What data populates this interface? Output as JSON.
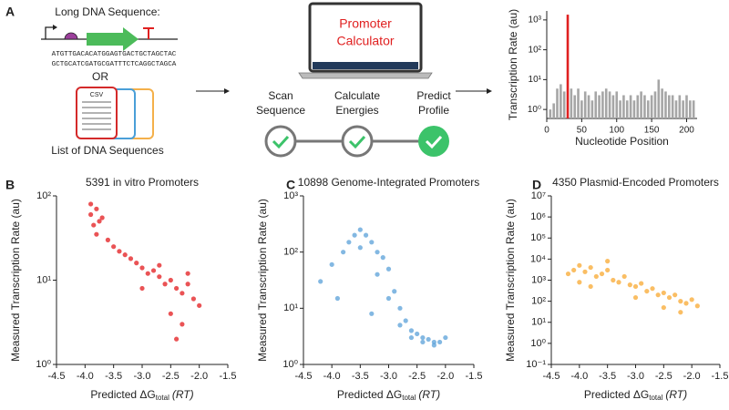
{
  "workflow": {
    "panel_label": "A",
    "long_seq_title": "Long DNA Sequence:",
    "seq_lines": [
      "ATGTTGACACATGGAGTGACTGCTAGCTAC",
      "GCTGCATCGATGCGATTTCTCAGGCTAGCA"
    ],
    "or": "OR",
    "csv": "CSV",
    "list_label": "List of DNA Sequences",
    "app_name": [
      "Promoter",
      "Calculator"
    ],
    "steps": [
      [
        "Scan",
        "Sequence"
      ],
      [
        "Calculate",
        "Energies"
      ],
      [
        "Predict",
        "Profile"
      ]
    ]
  },
  "panel_labels": [
    "B",
    "C",
    "D"
  ],
  "chart_data": [
    {
      "type": "bar",
      "ylog": true,
      "y_label": "Transcription Rate (au)",
      "x_label": "Nucleotide Position",
      "xlim": [
        0,
        215
      ],
      "xticks": [
        0,
        50,
        100,
        150,
        200
      ],
      "ylim": [
        0.5,
        2000
      ],
      "yticks": [
        {
          "value": 1,
          "label": "10⁰"
        },
        {
          "value": 10,
          "label": "10¹"
        },
        {
          "value": 100,
          "label": "10²"
        },
        {
          "value": 1000,
          "label": "10³"
        }
      ],
      "series": [
        {
          "color": "#a6a6a6",
          "x": [
            5,
            10,
            15,
            20,
            25,
            35,
            40,
            45,
            50,
            55,
            60,
            65,
            70,
            75,
            80,
            85,
            90,
            95,
            100,
            105,
            110,
            115,
            120,
            125,
            130,
            135,
            140,
            145,
            150,
            155,
            160,
            165,
            170,
            175,
            180,
            185,
            190,
            195,
            200,
            205,
            210
          ],
          "values": [
            1,
            1.6,
            5,
            7,
            4,
            5,
            3,
            5,
            2,
            4,
            3,
            2,
            4,
            3,
            4,
            5,
            4,
            3,
            4,
            2,
            3,
            2,
            3,
            2,
            3,
            4,
            3,
            2,
            3,
            4,
            10,
            5,
            4,
            3,
            3,
            2,
            3,
            2,
            3,
            2,
            2
          ]
        },
        {
          "color": "#e02020",
          "x": [
            30
          ],
          "values": [
            1500
          ]
        }
      ]
    },
    {
      "type": "scatter",
      "ylog": true,
      "title": "5391 in vitro Promoters",
      "y_label": "Measured Transcription Rate (au)",
      "x_label": "Predicted ΔG",
      "x_label_sub": "total",
      "x_label_unit": "(RT)",
      "xlim": [
        -4.5,
        -1.5
      ],
      "xticks": [
        -4.5,
        {
          "value": -4,
          "label": "-4.0"
        },
        -3.5,
        {
          "value": -3,
          "label": "-3.0"
        },
        -2.5,
        {
          "value": -2,
          "label": "-2.0"
        },
        -1.5
      ],
      "ylim": [
        1,
        100
      ],
      "yticks": [
        {
          "value": 1,
          "label": "10⁰"
        },
        {
          "value": 10,
          "label": "10¹"
        },
        {
          "value": 100,
          "label": "10²"
        }
      ],
      "series": [
        {
          "color": "#e31a1c",
          "x": [
            -3.9,
            -3.85,
            -3.8,
            -3.75,
            -3.8,
            -3.7,
            -3.9,
            -3.6,
            -3.5,
            -3.4,
            -3.3,
            -3.2,
            -3.1,
            -3.0,
            -2.9,
            -2.8,
            -2.7,
            -2.6,
            -2.5,
            -2.4,
            -2.3,
            -2.2,
            -2.1,
            -2.0,
            -2.5,
            -2.3,
            -2.7,
            -2.2,
            -3.0,
            -2.4
          ],
          "values": [
            60,
            45,
            70,
            50,
            35,
            55,
            80,
            30,
            25,
            22,
            20,
            18,
            16,
            14,
            12,
            13,
            11,
            9,
            10,
            8,
            7,
            9,
            6,
            5,
            4,
            3,
            15,
            12,
            8,
            2
          ]
        }
      ]
    },
    {
      "type": "scatter",
      "ylog": true,
      "title": "10898 Genome-Integrated Promoters",
      "y_label": "Measured Transcription Rate (au)",
      "x_label": "Predicted ΔG",
      "x_label_sub": "total",
      "x_label_unit": "(RT)",
      "xlim": [
        -4.5,
        -1.5
      ],
      "xticks": [
        -4.5,
        {
          "value": -4,
          "label": "-4.0"
        },
        -3.5,
        {
          "value": -3,
          "label": "-3.0"
        },
        -2.5,
        {
          "value": -2,
          "label": "-2.0"
        },
        -1.5
      ],
      "ylim": [
        1,
        1000
      ],
      "yticks": [
        {
          "value": 1,
          "label": "10⁰"
        },
        {
          "value": 10,
          "label": "10¹"
        },
        {
          "value": 100,
          "label": "10²"
        },
        {
          "value": 1000,
          "label": "10³"
        }
      ],
      "series": [
        {
          "color": "#5aa0d8",
          "x": [
            -4.2,
            -4.0,
            -3.8,
            -3.7,
            -3.6,
            -3.5,
            -3.4,
            -3.3,
            -3.2,
            -3.1,
            -3.0,
            -2.9,
            -2.8,
            -2.7,
            -2.6,
            -2.5,
            -2.4,
            -2.3,
            -2.2,
            -2.1,
            -2.0,
            -3.5,
            -3.2,
            -3.0,
            -2.8,
            -2.6,
            -2.4,
            -2.2,
            -3.9,
            -3.3
          ],
          "values": [
            30,
            60,
            100,
            150,
            200,
            250,
            200,
            150,
            100,
            80,
            50,
            20,
            10,
            6,
            4,
            3.5,
            3,
            2.8,
            2.5,
            2.5,
            3,
            120,
            40,
            15,
            5,
            3,
            2.5,
            2.2,
            15,
            8
          ]
        }
      ]
    },
    {
      "type": "scatter",
      "ylog": true,
      "title": "4350 Plasmid-Encoded Promoters",
      "y_label": "Measured Transcription Rate (au)",
      "x_label": "Predicted ΔG",
      "x_label_sub": "total",
      "x_label_unit": "(RT)",
      "xlim": [
        -4.5,
        -1.5
      ],
      "xticks": [
        -4.5,
        {
          "value": -4,
          "label": "-4.0"
        },
        -3.5,
        {
          "value": -3,
          "label": "-3.0"
        },
        -2.5,
        {
          "value": -2,
          "label": "-2.0"
        },
        -1.5
      ],
      "ylim": [
        0.1,
        10000000
      ],
      "yticks": [
        {
          "value": 0.1,
          "label": "10⁻¹"
        },
        {
          "value": 1,
          "label": "10⁰"
        },
        {
          "value": 10,
          "label": "10¹"
        },
        {
          "value": 100,
          "label": "10²"
        },
        {
          "value": 1000,
          "label": "10³"
        },
        {
          "value": 10000,
          "label": "10⁴"
        },
        {
          "value": 100000,
          "label": "10⁵"
        },
        {
          "value": 1000000,
          "label": "10⁶"
        },
        {
          "value": 10000000,
          "label": "10⁷"
        }
      ],
      "series": [
        {
          "color": "#f8a830",
          "x": [
            -4.2,
            -4.1,
            -4.0,
            -3.9,
            -3.8,
            -3.7,
            -3.6,
            -3.5,
            -3.4,
            -3.3,
            -3.2,
            -3.1,
            -3.0,
            -2.9,
            -2.8,
            -2.7,
            -2.6,
            -2.5,
            -2.4,
            -2.3,
            -2.2,
            -2.1,
            -2.0,
            -1.9,
            -3.8,
            -3.5,
            -3.0,
            -2.5,
            -2.2,
            -4.0
          ],
          "values": [
            2000,
            3000,
            5000,
            2500,
            4000,
            1500,
            2000,
            3000,
            1000,
            800,
            1500,
            600,
            500,
            700,
            300,
            400,
            200,
            250,
            150,
            200,
            100,
            80,
            120,
            60,
            500,
            8000,
            150,
            50,
            30,
            800
          ]
        }
      ]
    }
  ]
}
